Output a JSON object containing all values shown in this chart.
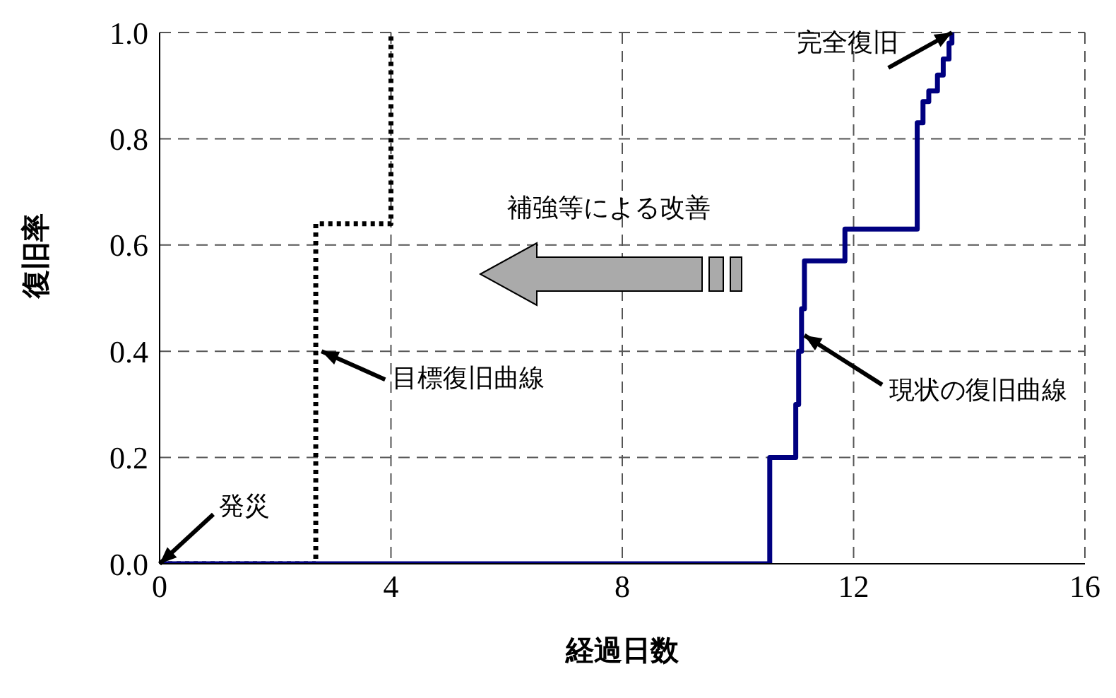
{
  "chart_data": {
    "type": "step",
    "xlabel": "経過日数",
    "ylabel": "復旧率",
    "xlim": [
      0,
      16
    ],
    "xticks": [
      0,
      4,
      8,
      12,
      16
    ],
    "ylim": [
      0,
      1
    ],
    "yticks": [
      {
        "value": 0,
        "label": "0.0"
      },
      {
        "value": 0.2,
        "label": "0.2"
      },
      {
        "value": 0.4,
        "label": "0.4"
      },
      {
        "value": 0.6,
        "label": "0.6"
      },
      {
        "value": 0.8,
        "label": "0.8"
      },
      {
        "value": 1,
        "label": "1.0"
      }
    ],
    "grid": true,
    "legend": false,
    "marker": "none",
    "series": [
      {
        "color": "#000000",
        "line_style": "dotted",
        "x": [
          0,
          2.7,
          4.0,
          4.0
        ],
        "values": [
          0,
          0.64,
          1.0,
          1.0
        ]
      },
      {
        "color": "#000080",
        "line_style": "solid",
        "x": [
          0,
          10.55,
          11.0,
          11.05,
          11.1,
          11.15,
          11.2,
          11.85,
          13.1,
          13.2,
          13.3,
          13.45,
          13.55,
          13.65,
          13.7
        ],
        "values": [
          0,
          0.2,
          0.3,
          0.4,
          0.48,
          0.57,
          0.57,
          0.63,
          0.83,
          0.87,
          0.89,
          0.92,
          0.95,
          0.98,
          1.0
        ]
      }
    ],
    "annotations": [
      {
        "text": "発災",
        "x": 0,
        "y": 0
      },
      {
        "text": "目標復旧曲線",
        "x": 2.8,
        "y": 0.4
      },
      {
        "text": "現状の復旧曲線",
        "x": 11.15,
        "y": 0.43
      },
      {
        "text": "完全復旧",
        "x": 13.7,
        "y": 1.0
      },
      "補強等による改善"
    ]
  }
}
